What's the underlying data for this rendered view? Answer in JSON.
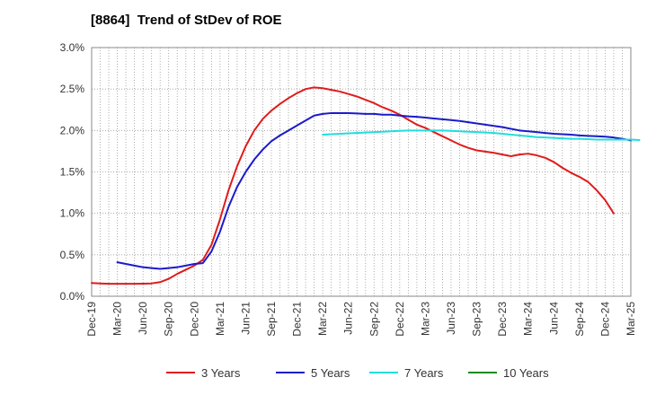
{
  "chart_data": {
    "type": "line",
    "title": "[8864]  Trend of StDev of ROE",
    "xlabel": "",
    "ylabel": "",
    "x": [
      "Dec-19",
      "Mar-20",
      "Jun-20",
      "Sep-20",
      "Dec-20",
      "Mar-21",
      "Jun-21",
      "Sep-21",
      "Dec-21",
      "Mar-22",
      "Jun-22",
      "Sep-22",
      "Dec-22",
      "Mar-23",
      "Jun-23",
      "Sep-23",
      "Dec-23",
      "Mar-24",
      "Jun-24",
      "Sep-24",
      "Dec-24",
      "Mar-25"
    ],
    "ylim": [
      0,
      3.0
    ],
    "yticks": [
      "0.0%",
      "0.5%",
      "1.0%",
      "1.5%",
      "2.0%",
      "2.5%",
      "3.0%"
    ],
    "grid": "dotted",
    "legend_position": "bottom",
    "series": [
      {
        "name": "3 Years",
        "color": "#e01b1b",
        "values": [
          0.16,
          0.15,
          0.16,
          0.3,
          0.44,
          1.28,
          2.0,
          2.38,
          2.52,
          2.47,
          2.37,
          2.26,
          2.1,
          1.93,
          1.79,
          1.73,
          1.69,
          1.69,
          1.55,
          1.38,
          1.0,
          null
        ],
        "monthly_points": [
          0.16,
          0.155,
          0.15,
          0.15,
          0.15,
          0.15,
          0.152,
          0.155,
          0.17,
          0.21,
          0.27,
          0.32,
          0.37,
          0.44,
          0.62,
          0.93,
          1.28,
          1.57,
          1.81,
          2.0,
          2.14,
          2.24,
          2.32,
          2.39,
          2.45,
          2.5,
          2.52,
          2.51,
          2.49,
          2.47,
          2.44,
          2.41,
          2.37,
          2.33,
          2.28,
          2.24,
          2.19,
          2.13,
          2.07,
          2.03,
          1.98,
          1.93,
          1.88,
          1.83,
          1.79,
          1.76,
          1.745,
          1.73,
          1.71,
          1.69,
          1.71,
          1.72,
          1.7,
          1.67,
          1.62,
          1.55,
          1.49,
          1.44,
          1.38,
          1.28,
          1.16,
          1.0
        ]
      },
      {
        "name": "5 Years",
        "color": "#1a1acc",
        "values": [
          null,
          0.41,
          0.34,
          0.35,
          0.4,
          1.08,
          1.65,
          1.94,
          2.16,
          2.21,
          2.2,
          2.19,
          2.17,
          2.14,
          2.1,
          2.05,
          2.0,
          1.97,
          1.94,
          1.92,
          1.88,
          null
        ],
        "monthly_points": [
          0.41,
          0.39,
          0.37,
          0.35,
          0.34,
          0.33,
          0.34,
          0.35,
          0.37,
          0.39,
          0.4,
          0.54,
          0.78,
          1.08,
          1.32,
          1.5,
          1.65,
          1.77,
          1.87,
          1.94,
          2.0,
          2.06,
          2.12,
          2.18,
          2.2,
          2.21,
          2.21,
          2.21,
          2.205,
          2.2,
          2.2,
          2.19,
          2.19,
          2.18,
          2.17,
          2.165,
          2.155,
          2.145,
          2.135,
          2.125,
          2.115,
          2.1,
          2.085,
          2.07,
          2.055,
          2.04,
          2.02,
          2.0,
          1.99,
          1.98,
          1.97,
          1.96,
          1.955,
          1.95,
          1.94,
          1.935,
          1.93,
          1.925,
          1.915,
          1.9,
          1.88
        ]
      },
      {
        "name": "7 Years",
        "color": "#22dddd",
        "values": [
          null,
          null,
          null,
          null,
          null,
          null,
          null,
          null,
          null,
          1.95,
          1.97,
          1.99,
          2.0,
          2.0,
          1.98,
          1.96,
          1.93,
          1.91,
          1.9,
          1.89,
          1.89,
          null
        ],
        "monthly_points": [
          1.95,
          1.955,
          1.96,
          1.965,
          1.97,
          1.975,
          1.98,
          1.985,
          1.99,
          1.995,
          2.0,
          2.0,
          2.0,
          2.0,
          2.0,
          1.995,
          1.99,
          1.985,
          1.98,
          1.975,
          1.97,
          1.96,
          1.95,
          1.94,
          1.93,
          1.92,
          1.915,
          1.91,
          1.905,
          1.9,
          1.9,
          1.895,
          1.89,
          1.89,
          1.89,
          1.89,
          1.89,
          1.885
        ]
      },
      {
        "name": "10 Years",
        "color": "#1a8c1a",
        "values": [
          null,
          null,
          null,
          null,
          null,
          null,
          null,
          null,
          null,
          null,
          null,
          null,
          null,
          null,
          null,
          null,
          null,
          null,
          null,
          null,
          null,
          null
        ],
        "monthly_points": []
      }
    ]
  }
}
